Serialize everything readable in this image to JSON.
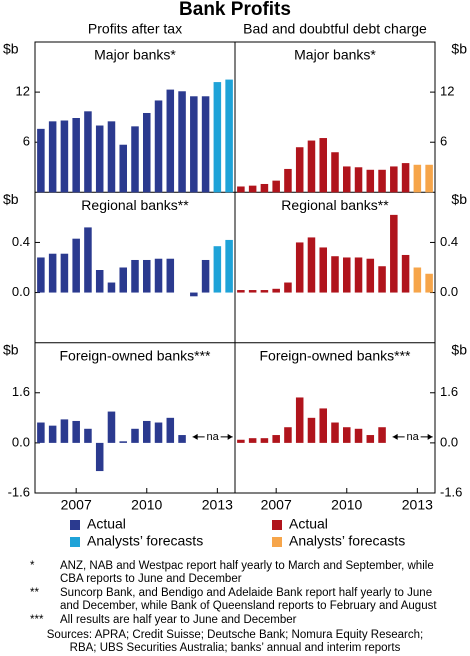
{
  "title": "Bank Profits",
  "chart_data": [
    {
      "type": "bar",
      "title": "Profits after tax",
      "categories": [
        null,
        null,
        null,
        "2007",
        null,
        null,
        null,
        null,
        null,
        "2010",
        null,
        null,
        null,
        null,
        null,
        "2013",
        null
      ],
      "legend": [
        {
          "name": "Actual",
          "color": "#2b3a8f"
        },
        {
          "name": "Analysts’ forecasts",
          "color": "#1fa3d8"
        }
      ],
      "panels": [
        {
          "title": "Major banks*",
          "unit": "$b",
          "ylim": [
            0,
            18
          ],
          "yticks": [
            6,
            12
          ],
          "series": [
            {
              "values": [
                7.6,
                8.5,
                8.6,
                8.9,
                9.7,
                8.0,
                8.5,
                5.7,
                7.9,
                9.5,
                11,
                12.3,
                12.1,
                11.5,
                11.5,
                null,
                null
              ]
            },
            {
              "values": [
                null,
                null,
                null,
                null,
                null,
                null,
                null,
                null,
                null,
                null,
                null,
                null,
                null,
                null,
                null,
                13.2,
                13.5
              ]
            }
          ]
        },
        {
          "title": "Regional banks**",
          "unit": "$b",
          "ylim": [
            -0.4,
            0.8
          ],
          "yticks": [
            {
              "value": 0,
              "label": "0.0"
            },
            0.4
          ],
          "series": [
            {
              "values": [
                0.28,
                0.31,
                0.31,
                0.43,
                0.52,
                0.18,
                0.08,
                0.2,
                0.26,
                0.26,
                0.27,
                0.27,
                null,
                -0.03,
                0.26,
                null,
                null
              ]
            },
            {
              "values": [
                null,
                null,
                null,
                null,
                null,
                null,
                null,
                null,
                null,
                null,
                null,
                null,
                null,
                null,
                null,
                0.37,
                0.42
              ]
            }
          ]
        },
        {
          "title": "Foreign-owned banks***",
          "unit": "$b",
          "ylim": [
            -1.6,
            3.2
          ],
          "yticks": [
            -1.6,
            {
              "value": 0,
              "label": "0.0"
            },
            1.6
          ],
          "annotation": "na",
          "series": [
            {
              "values": [
                0.65,
                0.55,
                0.75,
                0.7,
                0.45,
                -0.9,
                1.0,
                0.05,
                0.45,
                0.7,
                0.65,
                0.8,
                0.25,
                null,
                null,
                null,
                null
              ]
            },
            {
              "values": [
                null,
                null,
                null,
                null,
                null,
                null,
                null,
                null,
                null,
                null,
                null,
                null,
                null,
                null,
                null,
                null,
                null
              ]
            }
          ]
        }
      ]
    },
    {
      "type": "bar",
      "title": "Bad and doubtful debt charge",
      "categories": [
        null,
        null,
        null,
        "2007",
        null,
        null,
        null,
        null,
        null,
        "2010",
        null,
        null,
        null,
        null,
        null,
        "2013",
        null
      ],
      "legend": [
        {
          "name": "Actual",
          "color": "#b0141c"
        },
        {
          "name": "Analysts’ forecasts",
          "color": "#f6a54a"
        }
      ],
      "panels": [
        {
          "title": "Major banks*",
          "unit": "$b",
          "ylim": [
            0,
            18
          ],
          "yticks": [
            6,
            12
          ],
          "series": [
            {
              "values": [
                0.7,
                0.8,
                1.0,
                1.4,
                2.8,
                5.4,
                6.2,
                6.5,
                4.8,
                3.1,
                3.0,
                2.7,
                2.7,
                3.1,
                3.5,
                null,
                null
              ]
            },
            {
              "values": [
                null,
                null,
                null,
                null,
                null,
                null,
                null,
                null,
                null,
                null,
                null,
                null,
                null,
                null,
                null,
                3.3,
                3.3
              ]
            }
          ]
        },
        {
          "title": "Regional banks**",
          "unit": "$b",
          "ylim": [
            -0.4,
            0.8
          ],
          "yticks": [
            {
              "value": 0,
              "label": "0.0"
            },
            0.4
          ],
          "series": [
            {
              "values": [
                0.02,
                0.02,
                0.02,
                0.03,
                0.08,
                0.4,
                0.44,
                0.36,
                0.29,
                0.28,
                0.28,
                0.27,
                0.21,
                0.62,
                0.3,
                null,
                null
              ]
            },
            {
              "values": [
                null,
                null,
                null,
                null,
                null,
                null,
                null,
                null,
                null,
                null,
                null,
                null,
                null,
                null,
                null,
                0.2,
                0.15
              ]
            }
          ]
        },
        {
          "title": "Foreign-owned banks***",
          "unit": "$b",
          "ylim": [
            -1.6,
            3.2
          ],
          "yticks": [
            -1.6,
            {
              "value": 0,
              "label": "0.0"
            },
            1.6
          ],
          "annotation": "na",
          "series": [
            {
              "values": [
                0.1,
                0.15,
                0.15,
                0.25,
                0.5,
                1.45,
                0.8,
                1.1,
                0.65,
                0.5,
                0.45,
                0.25,
                0.5,
                null,
                null,
                null,
                null
              ]
            },
            {
              "values": [
                null,
                null,
                null,
                null,
                null,
                null,
                null,
                null,
                null,
                null,
                null,
                null,
                null,
                null,
                null,
                null,
                null
              ]
            }
          ]
        }
      ]
    }
  ],
  "notes": [
    {
      "mark": "*",
      "text": "ANZ, NAB and Westpac report half yearly to March and September, while CBA reports to June and December"
    },
    {
      "mark": "**",
      "text": "Suncorp Bank, and Bendigo and Adelaide Bank report half yearly to June and December, while Bank of Queensland reports to February and August"
    },
    {
      "mark": "***",
      "text": "All results are half year to June and December"
    }
  ],
  "sources": "Sources: APRA; Credit Suisse; Deutsche Bank; Nomura Equity Research; RBA; UBS Securities Australia; banks’ annual and interim reports"
}
